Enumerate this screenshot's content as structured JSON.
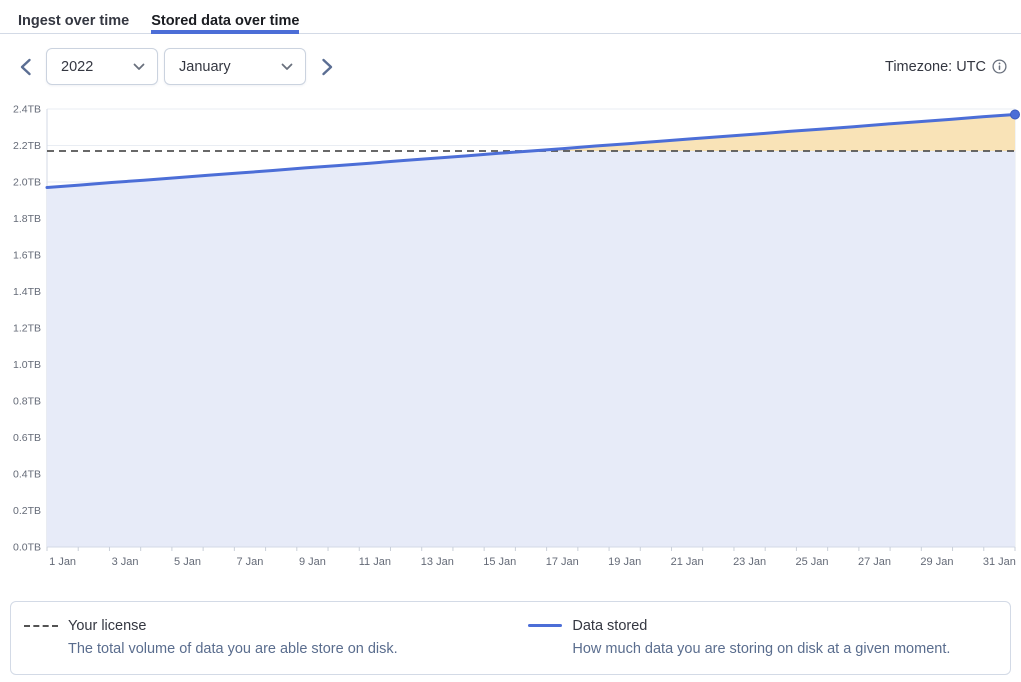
{
  "tabs": [
    {
      "label": "Ingest over time",
      "active": false
    },
    {
      "label": "Stored data over time",
      "active": true
    }
  ],
  "controls": {
    "year": "2022",
    "month": "January",
    "timezone_label": "Timezone: UTC"
  },
  "colors": {
    "accent_blue": "#4c6ed7",
    "tab_underline": "#4c6ed7",
    "area_under_license": "#e7ebf8",
    "area_over_license": "#f9e3b7",
    "reference_line": "#535353",
    "panel_border": "#d3dae6",
    "text_dark": "#343741",
    "text_subdued": "#646a77",
    "legend_description": "#5a6d8e"
  },
  "chart_data": {
    "type": "area",
    "x": [
      "1 Jan",
      "2 Jan",
      "3 Jan",
      "4 Jan",
      "5 Jan",
      "6 Jan",
      "7 Jan",
      "8 Jan",
      "9 Jan",
      "10 Jan",
      "11 Jan",
      "12 Jan",
      "13 Jan",
      "14 Jan",
      "15 Jan",
      "16 Jan",
      "17 Jan",
      "18 Jan",
      "19 Jan",
      "20 Jan",
      "21 Jan",
      "22 Jan",
      "23 Jan",
      "24 Jan",
      "25 Jan",
      "26 Jan",
      "27 Jan",
      "28 Jan",
      "29 Jan",
      "30 Jan",
      "31 Jan"
    ],
    "series": [
      {
        "name": "Data stored",
        "color": "#4c6ed7",
        "unit": "TB",
        "values": [
          1.97,
          1.983,
          1.997,
          2.01,
          2.023,
          2.037,
          2.05,
          2.063,
          2.077,
          2.09,
          2.103,
          2.117,
          2.13,
          2.143,
          2.157,
          2.17,
          2.183,
          2.197,
          2.21,
          2.223,
          2.237,
          2.25,
          2.263,
          2.277,
          2.29,
          2.303,
          2.317,
          2.33,
          2.343,
          2.357,
          2.37
        ]
      }
    ],
    "reference_line": {
      "name": "Your license",
      "value": 2.17,
      "unit": "TB",
      "style": "dashed",
      "color": "#535353"
    },
    "ylim": [
      0,
      2.4
    ],
    "y_ticks": [
      "0.0TB",
      "0.2TB",
      "0.4TB",
      "0.6TB",
      "0.8TB",
      "1.0TB",
      "1.2TB",
      "1.4TB",
      "1.6TB",
      "1.8TB",
      "2.0TB",
      "2.2TB",
      "2.4TB"
    ],
    "x_tick_labels": [
      "1 Jan",
      "3 Jan",
      "5 Jan",
      "7 Jan",
      "9 Jan",
      "11 Jan",
      "13 Jan",
      "15 Jan",
      "17 Jan",
      "19 Jan",
      "21 Jan",
      "23 Jan",
      "25 Jan",
      "27 Jan",
      "29 Jan",
      "31 Jan"
    ],
    "grid": true,
    "area_fill_under_license": "#e7ebf8",
    "area_fill_over_license": "#f9e3b7",
    "end_point_marker": true,
    "legend_position": "bottom-panel"
  },
  "legend": [
    {
      "title": "Your license",
      "description": "The total volume of data you are able store on disk.",
      "swatch": "dashed-gray"
    },
    {
      "title": "Data stored",
      "description": "How much data you are storing on disk at a given moment.",
      "swatch": "solid-blue"
    }
  ]
}
